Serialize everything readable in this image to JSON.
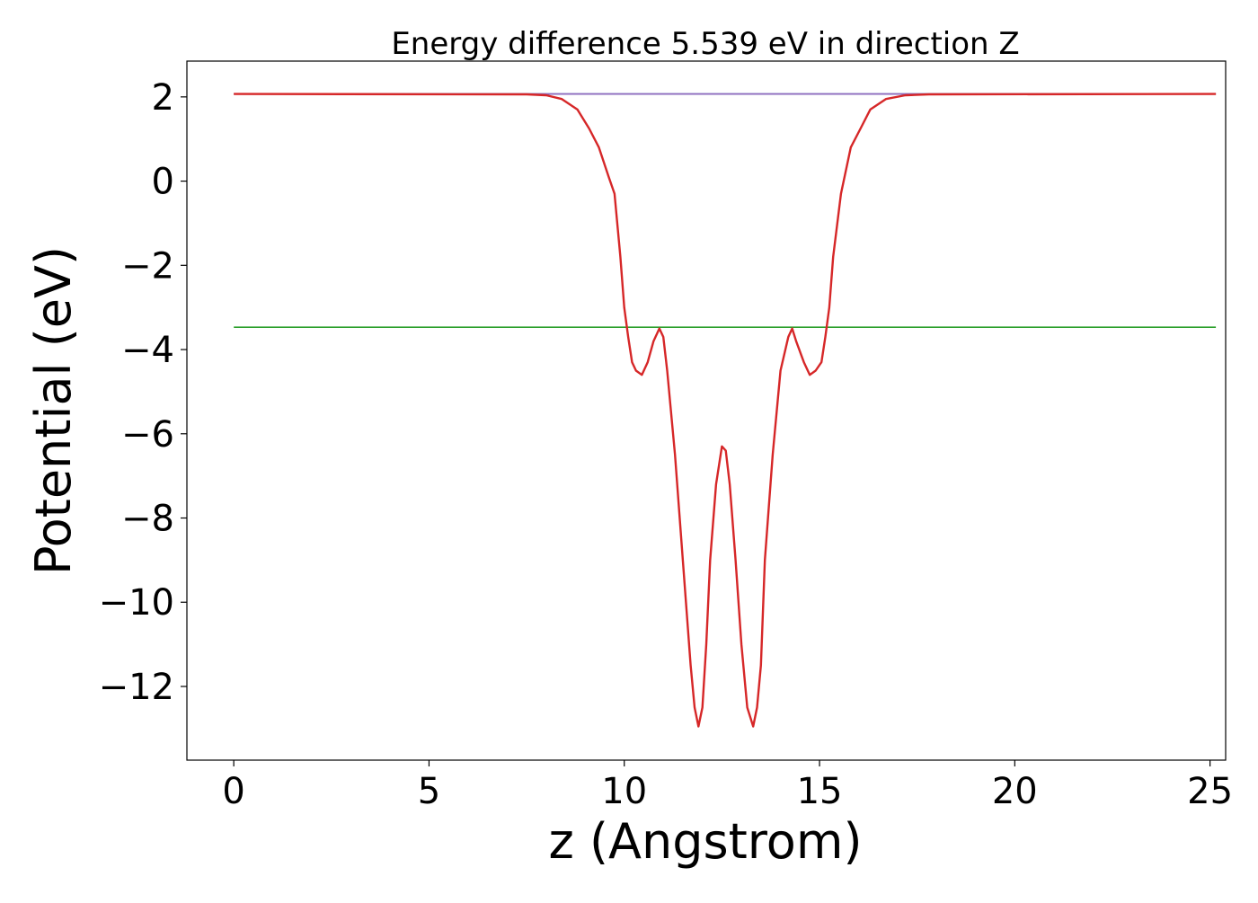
{
  "chart_data": {
    "type": "line",
    "title": "Energy difference 5.539 eV in direction Z",
    "xlabel": "z (Angstrom)",
    "ylabel": "Potential (eV)",
    "xlim": [
      -1.2,
      25.4
    ],
    "ylim": [
      -13.75,
      2.85
    ],
    "x_ticks": [
      0,
      5,
      10,
      15,
      20,
      25
    ],
    "x_tick_labels": [
      "0",
      "5",
      "10",
      "15",
      "20",
      "25"
    ],
    "y_ticks": [
      2,
      0,
      -2,
      -4,
      -6,
      -8,
      -10,
      -12
    ],
    "y_tick_labels": [
      "2",
      "0",
      "−2",
      "−4",
      "−6",
      "−8",
      "−10",
      "−12"
    ],
    "grid": false,
    "legend": "none",
    "series": [
      {
        "color": "#1f77b4",
        "x": [
          0,
          25.15
        ],
        "y": [
          2.07,
          2.07
        ]
      },
      {
        "color": "#2ca02c",
        "x": [
          0,
          25.15
        ],
        "y": [
          -3.47,
          -3.47
        ]
      },
      {
        "color": "#9467bd",
        "x": [
          0,
          8.0,
          17.3,
          25.15
        ],
        "y": [
          2.07,
          2.07,
          2.07,
          2.07
        ]
      },
      {
        "color": "#d62728",
        "x": [
          0,
          7.5,
          8.0,
          8.4,
          8.8,
          9.1,
          9.35,
          9.6,
          9.75,
          9.9,
          10.0,
          10.1,
          10.2,
          10.3,
          10.45,
          10.6,
          10.75,
          10.9,
          11.0,
          11.1,
          11.3,
          11.5,
          11.7,
          11.8,
          11.9,
          12.0,
          12.1,
          12.2,
          12.35,
          12.5,
          12.6,
          12.7,
          12.85,
          13.0,
          13.15,
          13.3,
          13.4,
          13.5,
          13.6,
          13.8,
          14.0,
          14.2,
          14.3,
          14.4,
          14.6,
          14.75,
          14.9,
          15.05,
          15.15,
          15.25,
          15.35,
          15.55,
          15.8,
          16.05,
          16.3,
          16.7,
          17.2,
          17.8,
          25.15
        ],
        "y": [
          2.07,
          2.06,
          2.04,
          1.95,
          1.7,
          1.25,
          0.8,
          0.1,
          -0.3,
          -1.8,
          -3.0,
          -3.7,
          -4.3,
          -4.5,
          -4.6,
          -4.3,
          -3.8,
          -3.5,
          -3.7,
          -4.5,
          -6.5,
          -9.0,
          -11.5,
          -12.5,
          -12.95,
          -12.5,
          -11.0,
          -9.0,
          -7.2,
          -6.3,
          -6.4,
          -7.2,
          -9.0,
          -11.0,
          -12.5,
          -12.95,
          -12.5,
          -11.5,
          -9.0,
          -6.5,
          -4.5,
          -3.7,
          -3.5,
          -3.8,
          -4.3,
          -4.6,
          -4.5,
          -4.3,
          -3.7,
          -3.0,
          -1.8,
          -0.3,
          0.8,
          1.25,
          1.7,
          1.95,
          2.04,
          2.06,
          2.07
        ]
      }
    ]
  }
}
